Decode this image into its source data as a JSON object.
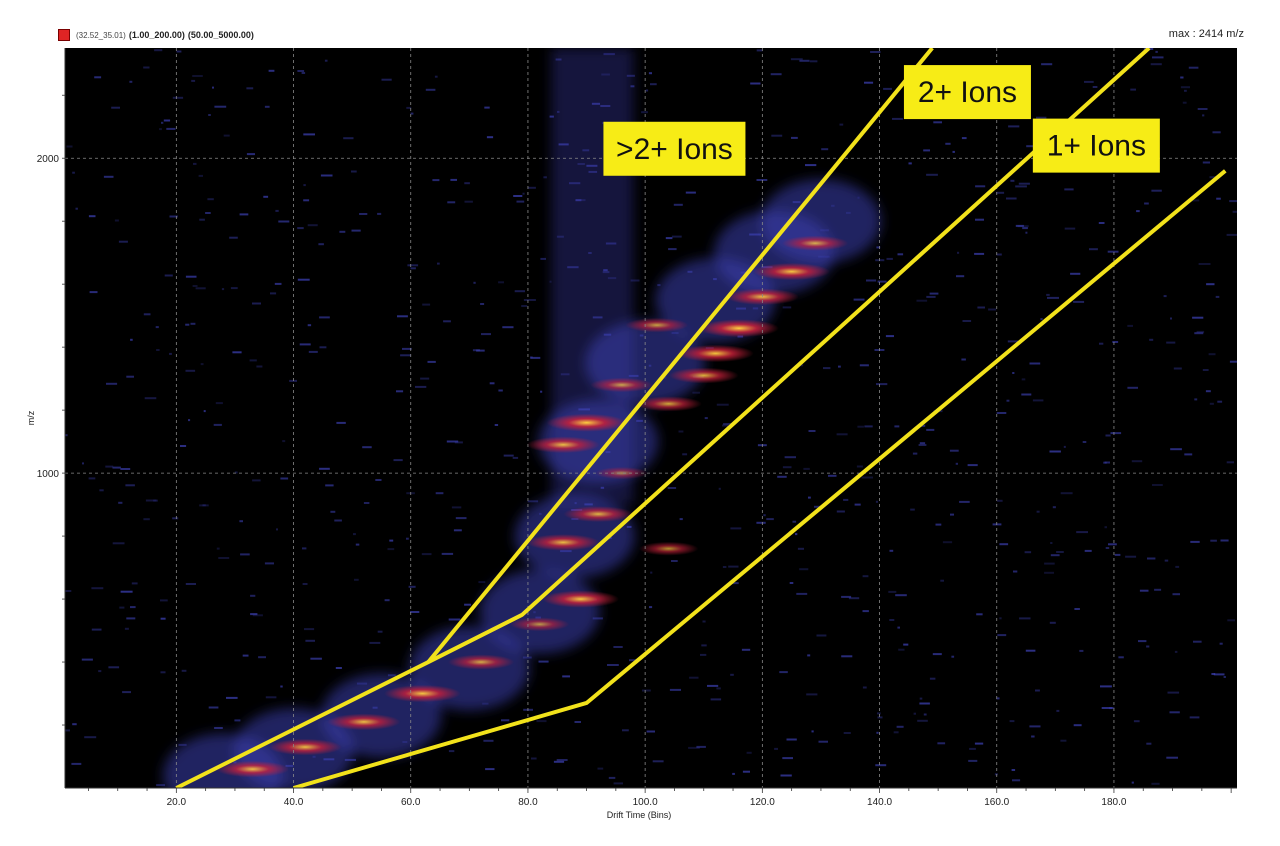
{
  "header": {
    "swatch_color": "#e02424",
    "range_mobility": "(32.52_35.01)",
    "range_drift": "(1.00_200.00)",
    "range_mz": "(50.00_5000.00)",
    "max_label": "max : 2414 m/z"
  },
  "colors": {
    "background": "#000000",
    "low_intensity": "#3b3fb0",
    "mid_intensity": "#c8203a",
    "high_intensity": "#ffd23f",
    "region_line": "#f2e21b",
    "label_box": "#f7ec16"
  },
  "chart_data": {
    "type": "heatmap",
    "title": "",
    "xlabel": "Drift Time (Bins)",
    "ylabel": "m/z",
    "xlim": [
      1,
      201
    ],
    "ylim": [
      0,
      2350
    ],
    "x_ticks": [
      20,
      40,
      60,
      80,
      100,
      120,
      140,
      160,
      180
    ],
    "x_tick_labels": [
      "20.0",
      "40.0",
      "60.0",
      "80.0",
      "100.0",
      "120.0",
      "140.0",
      "160.0",
      "180.0"
    ],
    "y_ticks": [
      1000,
      2000
    ],
    "y_tick_labels": [
      "1000",
      "2000"
    ],
    "grid": true,
    "hot_spots": [
      {
        "x": 33,
        "y": 60,
        "intensity": 0.9
      },
      {
        "x": 42,
        "y": 130,
        "intensity": 0.9
      },
      {
        "x": 52,
        "y": 210,
        "intensity": 0.9
      },
      {
        "x": 62,
        "y": 300,
        "intensity": 0.95
      },
      {
        "x": 72,
        "y": 400,
        "intensity": 0.8
      },
      {
        "x": 82,
        "y": 520,
        "intensity": 0.7
      },
      {
        "x": 89,
        "y": 600,
        "intensity": 0.95
      },
      {
        "x": 86,
        "y": 780,
        "intensity": 0.9
      },
      {
        "x": 92,
        "y": 870,
        "intensity": 0.85
      },
      {
        "x": 86,
        "y": 1090,
        "intensity": 0.9
      },
      {
        "x": 90,
        "y": 1160,
        "intensity": 1.0
      },
      {
        "x": 96,
        "y": 1280,
        "intensity": 0.75
      },
      {
        "x": 104,
        "y": 1220,
        "intensity": 0.8
      },
      {
        "x": 102,
        "y": 1470,
        "intensity": 0.75
      },
      {
        "x": 110,
        "y": 1310,
        "intensity": 0.85
      },
      {
        "x": 112,
        "y": 1380,
        "intensity": 0.95
      },
      {
        "x": 116,
        "y": 1460,
        "intensity": 1.0
      },
      {
        "x": 120,
        "y": 1560,
        "intensity": 0.9
      },
      {
        "x": 125,
        "y": 1640,
        "intensity": 0.95
      },
      {
        "x": 129,
        "y": 1730,
        "intensity": 0.8
      },
      {
        "x": 104,
        "y": 760,
        "intensity": 0.7
      },
      {
        "x": 96,
        "y": 1000,
        "intensity": 0.6
      }
    ],
    "region_lines": [
      {
        "name": "upper-boundary",
        "points": [
          [
            63,
            400
          ],
          [
            149,
            2350
          ]
        ]
      },
      {
        "name": "middle-boundary",
        "points": [
          [
            20,
            0
          ],
          [
            63,
            400
          ],
          [
            79,
            550
          ],
          [
            186,
            2350
          ]
        ]
      },
      {
        "name": "lower-boundary",
        "points": [
          [
            40,
            0
          ],
          [
            90,
            270
          ],
          [
            199,
            1960
          ]
        ]
      }
    ],
    "annotations": [
      {
        "text": ">2+ Ions",
        "x": 105,
        "y": 2030
      },
      {
        "text": "2+ Ions",
        "x": 155,
        "y": 2210
      },
      {
        "text": "1+ Ions",
        "x": 177,
        "y": 2040
      }
    ]
  }
}
